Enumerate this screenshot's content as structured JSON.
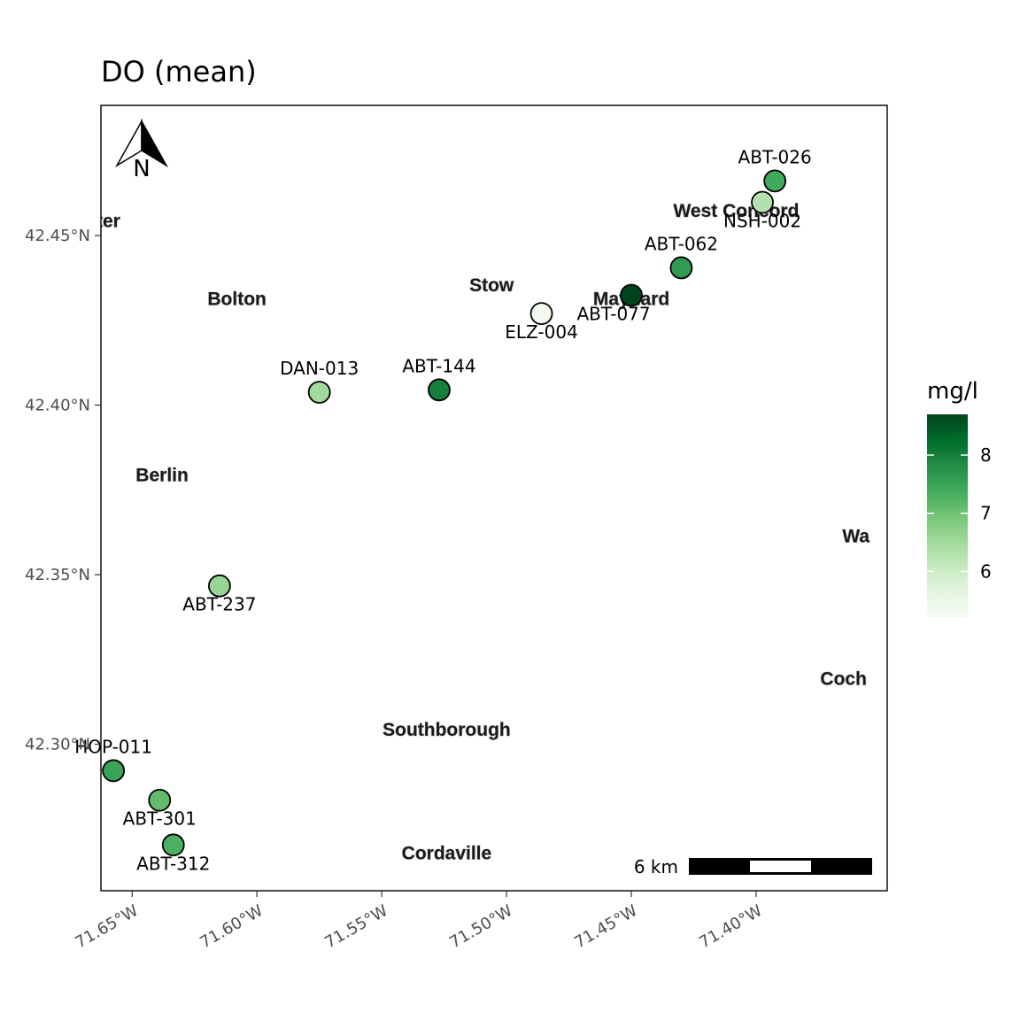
{
  "title": "DO (mean)",
  "chart_data": {
    "type": "map-scatter",
    "title": "DO (mean)",
    "xlim": [
      -71.6625,
      -71.3475
    ],
    "ylim": [
      42.2568,
      42.4884
    ],
    "x_ticks": [
      {
        "value": -71.65,
        "label": "71.65°W"
      },
      {
        "value": -71.6,
        "label": "71.60°W"
      },
      {
        "value": -71.55,
        "label": "71.55°W"
      },
      {
        "value": -71.5,
        "label": "71.50°W"
      },
      {
        "value": -71.45,
        "label": "71.45°W"
      },
      {
        "value": -71.4,
        "label": "71.40°W"
      }
    ],
    "y_ticks": [
      {
        "value": 42.3,
        "label": "42.30°N"
      },
      {
        "value": 42.35,
        "label": "42.35°N"
      },
      {
        "value": 42.4,
        "label": "42.40°N"
      },
      {
        "value": 42.45,
        "label": "42.45°N"
      }
    ],
    "legend": {
      "title": "mg/l",
      "min": 5.2,
      "max": 8.7,
      "ticks": [
        {
          "value": 6,
          "label": "6"
        },
        {
          "value": 7,
          "label": "7"
        },
        {
          "value": 8,
          "label": "8"
        }
      ],
      "color_low": "#f7fcf5",
      "color_high": "#00441b"
    },
    "sites": [
      {
        "name": "ABT-026",
        "lon": -71.3925,
        "lat": 42.4661,
        "value": 7.4,
        "label_pos": "above"
      },
      {
        "name": "NSH-002",
        "lon": -71.3975,
        "lat": 42.4598,
        "value": 6.3,
        "label_pos": "below"
      },
      {
        "name": "ABT-062",
        "lon": -71.43,
        "lat": 42.4405,
        "value": 7.6,
        "label_pos": "above"
      },
      {
        "name": "ABT-077",
        "lon": -71.45,
        "lat": 42.4324,
        "value": 8.7,
        "label_pos": "below-left"
      },
      {
        "name": "ELZ-004",
        "lon": -71.486,
        "lat": 42.427,
        "value": 5.3,
        "label_pos": "below"
      },
      {
        "name": "ABT-144",
        "lon": -71.527,
        "lat": 42.4045,
        "value": 8.0,
        "label_pos": "above"
      },
      {
        "name": "DAN-013",
        "lon": -71.575,
        "lat": 42.4038,
        "value": 6.5,
        "label_pos": "above"
      },
      {
        "name": "ABT-237",
        "lon": -71.615,
        "lat": 42.3467,
        "value": 6.6,
        "label_pos": "below"
      },
      {
        "name": "HOP-011",
        "lon": -71.6575,
        "lat": 42.2922,
        "value": 7.5,
        "label_pos": "above"
      },
      {
        "name": "ABT-301",
        "lon": -71.639,
        "lat": 42.2835,
        "value": 7.1,
        "label_pos": "below"
      },
      {
        "name": "ABT-312",
        "lon": -71.6335,
        "lat": 42.2703,
        "value": 7.3,
        "label_pos": "below"
      }
    ],
    "basemap_places": [
      {
        "name": "ncaster",
        "lon": -71.668,
        "lat": 42.454
      },
      {
        "name": "Bolton",
        "lon": -71.608,
        "lat": 42.431
      },
      {
        "name": "Stow",
        "lon": -71.506,
        "lat": 42.435
      },
      {
        "name": "Maynard",
        "lon": -71.45,
        "lat": 42.431
      },
      {
        "name": "West Concord",
        "lon": -71.408,
        "lat": 42.457
      },
      {
        "name": "Berlin",
        "lon": -71.638,
        "lat": 42.379
      },
      {
        "name": "Wa",
        "lon": -71.36,
        "lat": 42.361
      },
      {
        "name": "Coch",
        "lon": -71.365,
        "lat": 42.319
      },
      {
        "name": "Southborough",
        "lon": -71.524,
        "lat": 42.304
      },
      {
        "name": "Cordaville",
        "lon": -71.524,
        "lat": 42.2675
      }
    ],
    "north_arrow": "N",
    "scale_bar": {
      "label": "6 km"
    }
  }
}
